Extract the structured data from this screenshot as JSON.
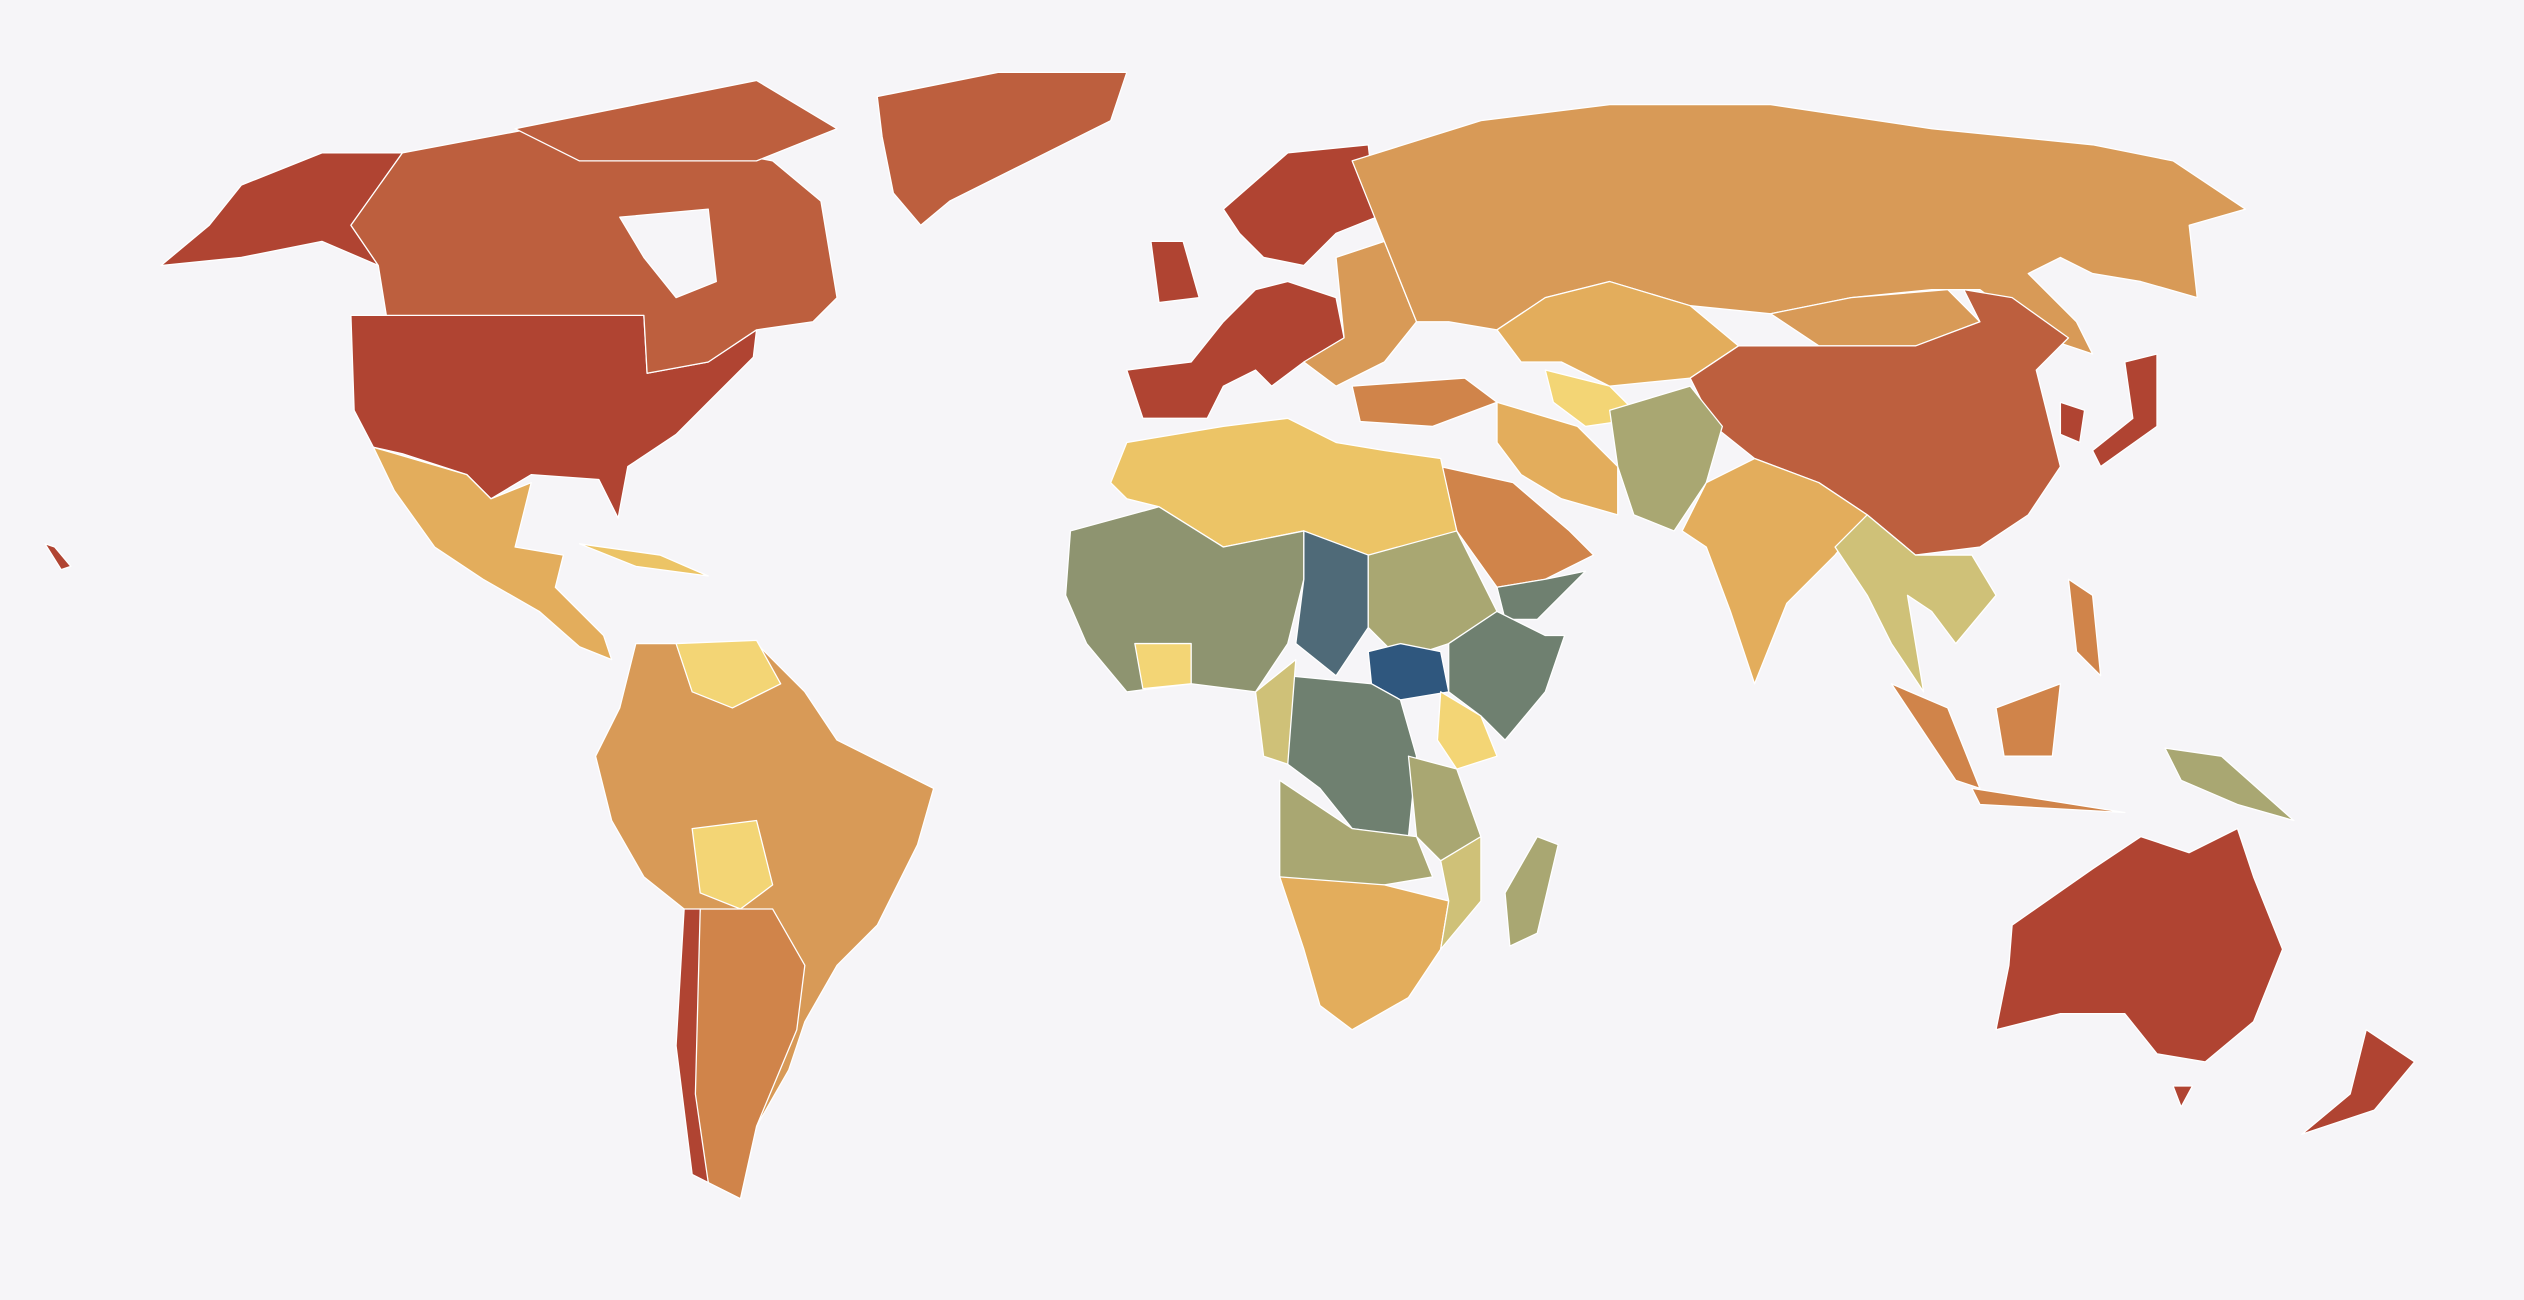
{
  "map": {
    "background": "#f6f5f8",
    "border": "#ffffff",
    "regions": [
      {
        "fill": "#b04432"
      },
      {
        "fill": "#b04432"
      },
      {
        "fill": "#bd5f3e"
      },
      {
        "fill": "#bd5f3e"
      },
      {
        "fill": "#bd5f3e"
      },
      {
        "fill": "#e3ad5c"
      },
      {
        "fill": "#ecc466"
      },
      {
        "fill": "#d89a57"
      },
      {
        "fill": "#f3d575"
      },
      {
        "fill": "#f3d575"
      },
      {
        "fill": "#d0844a"
      },
      {
        "fill": "#b04432"
      },
      {
        "fill": "#b04432"
      },
      {
        "fill": "#b04432"
      },
      {
        "fill": "#b04432"
      },
      {
        "fill": "#d89a57"
      },
      {
        "fill": "#d89a57"
      },
      {
        "fill": "#e3ad5c"
      },
      {
        "fill": "#f3d575"
      },
      {
        "fill": "#d89a57"
      },
      {
        "fill": "#bd5f3e"
      },
      {
        "fill": "#b04432"
      },
      {
        "fill": "#b04432"
      },
      {
        "fill": "#d0844a"
      },
      {
        "fill": "#e3ad5c"
      },
      {
        "fill": "#d0844a"
      },
      {
        "fill": "#a9a772"
      },
      {
        "fill": "#6f8070"
      },
      {
        "fill": "#e3ad5c"
      },
      {
        "fill": "#cfc178"
      },
      {
        "fill": "#d0844a"
      },
      {
        "fill": "#d0844a"
      },
      {
        "fill": "#d0844a"
      },
      {
        "fill": "#d0844a"
      },
      {
        "fill": "#a9a772"
      },
      {
        "fill": "#b04432"
      },
      {
        "fill": "#b04432"
      },
      {
        "fill": "#b04432"
      },
      {
        "fill": "#ecc466"
      },
      {
        "fill": "#8e9470"
      },
      {
        "fill": "#4f6a78"
      },
      {
        "fill": "#a9a772"
      },
      {
        "fill": "#2f577e"
      },
      {
        "fill": "#6f8070"
      },
      {
        "fill": "#f3d575"
      },
      {
        "fill": "#6f8070"
      },
      {
        "fill": "#cfc178"
      },
      {
        "fill": "#a9a772"
      },
      {
        "fill": "#a9a772"
      },
      {
        "fill": "#e3ad5c"
      },
      {
        "fill": "#cfc178"
      },
      {
        "fill": "#a9a772"
      },
      {
        "fill": "#f3d575"
      },
      {
        "fill": "#b04432"
      }
    ]
  }
}
